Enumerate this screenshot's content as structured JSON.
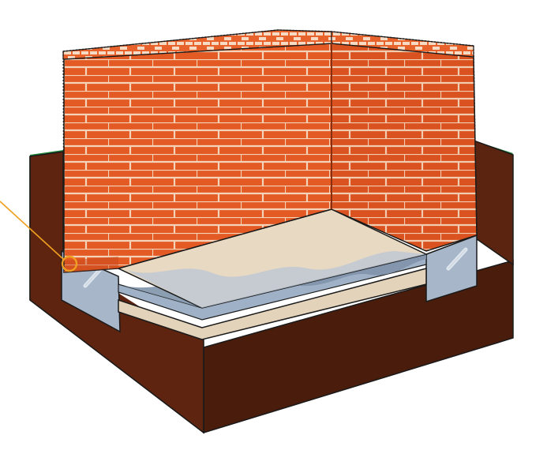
{
  "diagram": {
    "subject": "brick-wall-corner-on-slab-foundation",
    "colors": {
      "background": "#ffffff",
      "grass": "#1e8a3a",
      "soil_top": "#6b2c14",
      "soil_front": "#5e2410",
      "soil_side": "#4a1c0c",
      "brick": "#e35a24",
      "brick_dark": "#c84a1c",
      "mortar": "#f4d3b8",
      "slab_top": "#e8d9c2",
      "slab_edge": "#cdbfa6",
      "membrane": "#9fb1c6",
      "membrane_dark": "#7f93aa",
      "footing": "#a7b6c8",
      "callout": "#f0a020",
      "outline": "#1a1a1a"
    },
    "icons": [
      "callout-circle-marker",
      "wall-tie-icon"
    ]
  }
}
